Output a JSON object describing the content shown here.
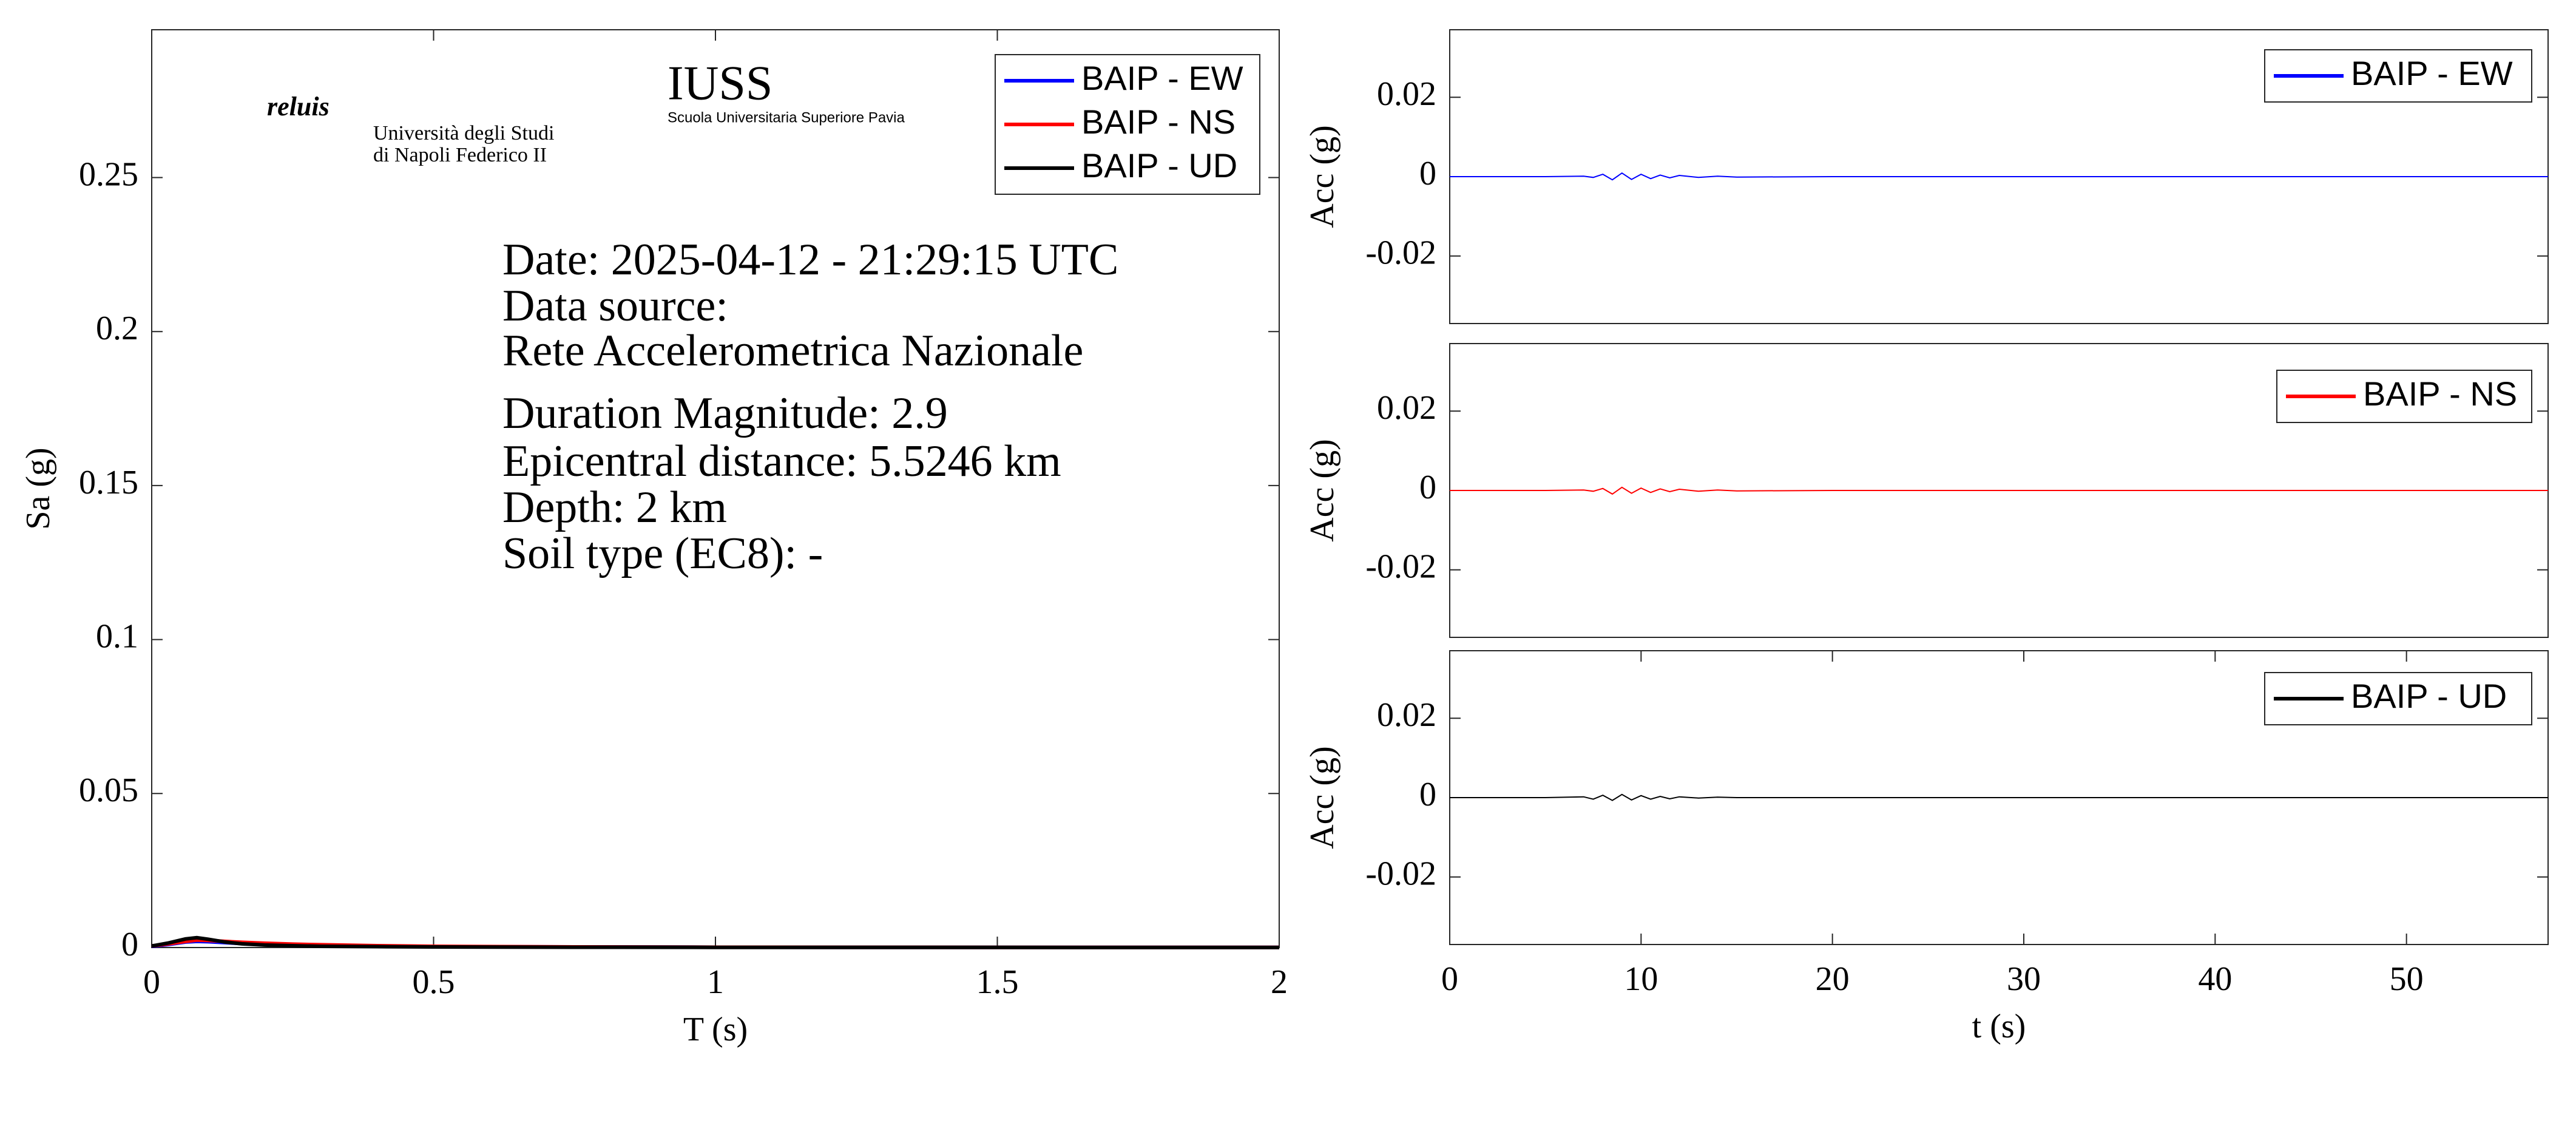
{
  "chart_data": [
    {
      "type": "line",
      "xlabel": "T (s)",
      "ylabel": "Sa (g)",
      "xlim": [
        0,
        2
      ],
      "xticks": [
        0,
        0.5,
        1,
        1.5,
        2
      ],
      "ylim": [
        0,
        0.298
      ],
      "yticks": [
        0,
        0.05,
        0.1,
        0.15,
        0.2,
        0.25
      ],
      "legend": "upper right",
      "logos": [
        "reluis",
        "Università degli Studi",
        "di Napoli Federico II",
        "IUSS",
        "Scuola Universitaria Superiore Pavia"
      ],
      "annotations": [
        "Date: 2025-04-12 - 21:29:15 UTC",
        "Data source:",
        "Rete Accelerometrica Nazionale",
        "Duration Magnitude: 2.9",
        "Epicentral distance: 5.5246 km",
        "Depth: 2 km",
        "Soil type (EC8): -"
      ],
      "x": [
        0,
        0.03,
        0.06,
        0.08,
        0.1,
        0.13,
        0.16,
        0.2,
        0.25,
        0.3,
        0.4,
        0.5,
        0.75,
        1,
        1.5,
        2
      ],
      "series": [
        {
          "name": "BAIP - EW",
          "color": "#0000ff",
          "values": [
            0.0004,
            0.001,
            0.0018,
            0.002,
            0.0019,
            0.0016,
            0.0013,
            0.001,
            0.0008,
            0.0006,
            0.0004,
            0.0003,
            0.0002,
            0.0001,
            5e-05,
            3e-05
          ]
        },
        {
          "name": "BAIP - NS",
          "color": "#ff0000",
          "values": [
            0.0005,
            0.0012,
            0.002,
            0.0024,
            0.0023,
            0.002,
            0.0017,
            0.0014,
            0.0011,
            0.0009,
            0.0006,
            0.0004,
            0.0002,
            0.0001,
            5e-05,
            3e-05
          ]
        },
        {
          "name": "BAIP - UD",
          "color": "#000000",
          "values": [
            0.0005,
            0.0015,
            0.0028,
            0.0032,
            0.0027,
            0.0018,
            0.0012,
            0.0008,
            0.0006,
            0.0004,
            0.0003,
            0.0002,
            0.0001,
            5e-05,
            3e-05,
            2e-05
          ]
        }
      ]
    },
    {
      "type": "line",
      "ylabel": "Acc (g)",
      "xlim": [
        0,
        57.4
      ],
      "ylim": [
        -0.037,
        0.037
      ],
      "yticks": [
        -0.02,
        0,
        0.02
      ],
      "legend": "upper right",
      "x": [
        0,
        5,
        7,
        7.5,
        8,
        8.5,
        9,
        9.5,
        10,
        10.5,
        11,
        11.5,
        12,
        13,
        14,
        15,
        20,
        30,
        40,
        50,
        57.4
      ],
      "series": [
        {
          "name": "BAIP - EW",
          "color": "#0000ff",
          "values": [
            0,
            0,
            0.0001,
            -0.0002,
            0.0006,
            -0.0008,
            0.0009,
            -0.0007,
            0.0006,
            -0.0005,
            0.0004,
            -0.0003,
            0.0003,
            -0.0002,
            0.0001,
            -0.0001,
            0,
            0,
            0,
            0,
            0
          ]
        }
      ]
    },
    {
      "type": "line",
      "ylabel": "Acc (g)",
      "xlim": [
        0,
        57.4
      ],
      "ylim": [
        -0.037,
        0.037
      ],
      "yticks": [
        -0.02,
        0,
        0.02
      ],
      "legend": "upper right",
      "x": [
        0,
        5,
        7,
        7.5,
        8,
        8.5,
        9,
        9.5,
        10,
        10.5,
        11,
        11.5,
        12,
        13,
        14,
        15,
        20,
        30,
        40,
        50,
        57.4
      ],
      "series": [
        {
          "name": "BAIP - NS",
          "color": "#ff0000",
          "values": [
            0,
            0,
            0.0001,
            -0.0002,
            0.0005,
            -0.0009,
            0.0008,
            -0.0007,
            0.0006,
            -0.0005,
            0.0004,
            -0.0003,
            0.0003,
            -0.0002,
            0.0001,
            -0.0001,
            0,
            0,
            0,
            0,
            0
          ]
        }
      ]
    },
    {
      "type": "line",
      "xlabel": "t (s)",
      "ylabel": "Acc (g)",
      "xlim": [
        0,
        57.4
      ],
      "xticks": [
        0,
        10,
        20,
        30,
        40,
        50
      ],
      "ylim": [
        -0.037,
        0.037
      ],
      "yticks": [
        -0.02,
        0,
        0.02
      ],
      "legend": "upper right",
      "x": [
        0,
        5,
        7,
        7.5,
        8,
        8.5,
        9,
        9.5,
        10,
        10.5,
        11,
        11.5,
        12,
        13,
        14,
        15,
        20,
        30,
        40,
        50,
        57.4
      ],
      "series": [
        {
          "name": "BAIP - UD",
          "color": "#000000",
          "values": [
            0,
            0,
            0.0002,
            -0.0004,
            0.0006,
            -0.0007,
            0.0008,
            -0.0006,
            0.0005,
            -0.0004,
            0.0003,
            -0.0003,
            0.0002,
            -0.0001,
            0.0001,
            0,
            0,
            0,
            0,
            0,
            0
          ]
        }
      ]
    }
  ]
}
